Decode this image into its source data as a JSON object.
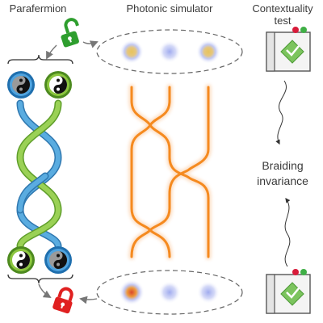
{
  "titles": {
    "parafermion": "Parafermion",
    "photonic_simulator": "Photonic simulator",
    "contextuality_test_line1": "Contextuality",
    "contextuality_test_line2": "test"
  },
  "center_label": {
    "line1": "Braiding",
    "line2": "invariance"
  },
  "colors": {
    "waveguide": "#f58a1f",
    "strand_green": "#8cc63f",
    "strand_blue": "#4a9fd6",
    "lock_open": "#2e9e2e",
    "lock_closed": "#e02020",
    "spot_blue": "#9aa6ee",
    "spot_yellow": "#e8c35a",
    "spot_red": "#d9472b",
    "box_check": "#6cbf5a"
  },
  "icons": {
    "top_lock": "unlocked-padlock-icon",
    "bottom_lock": "locked-padlock-icon",
    "anyon_symbol": "yin-yang-icon",
    "test_box": "contextuality-box-icon"
  }
}
